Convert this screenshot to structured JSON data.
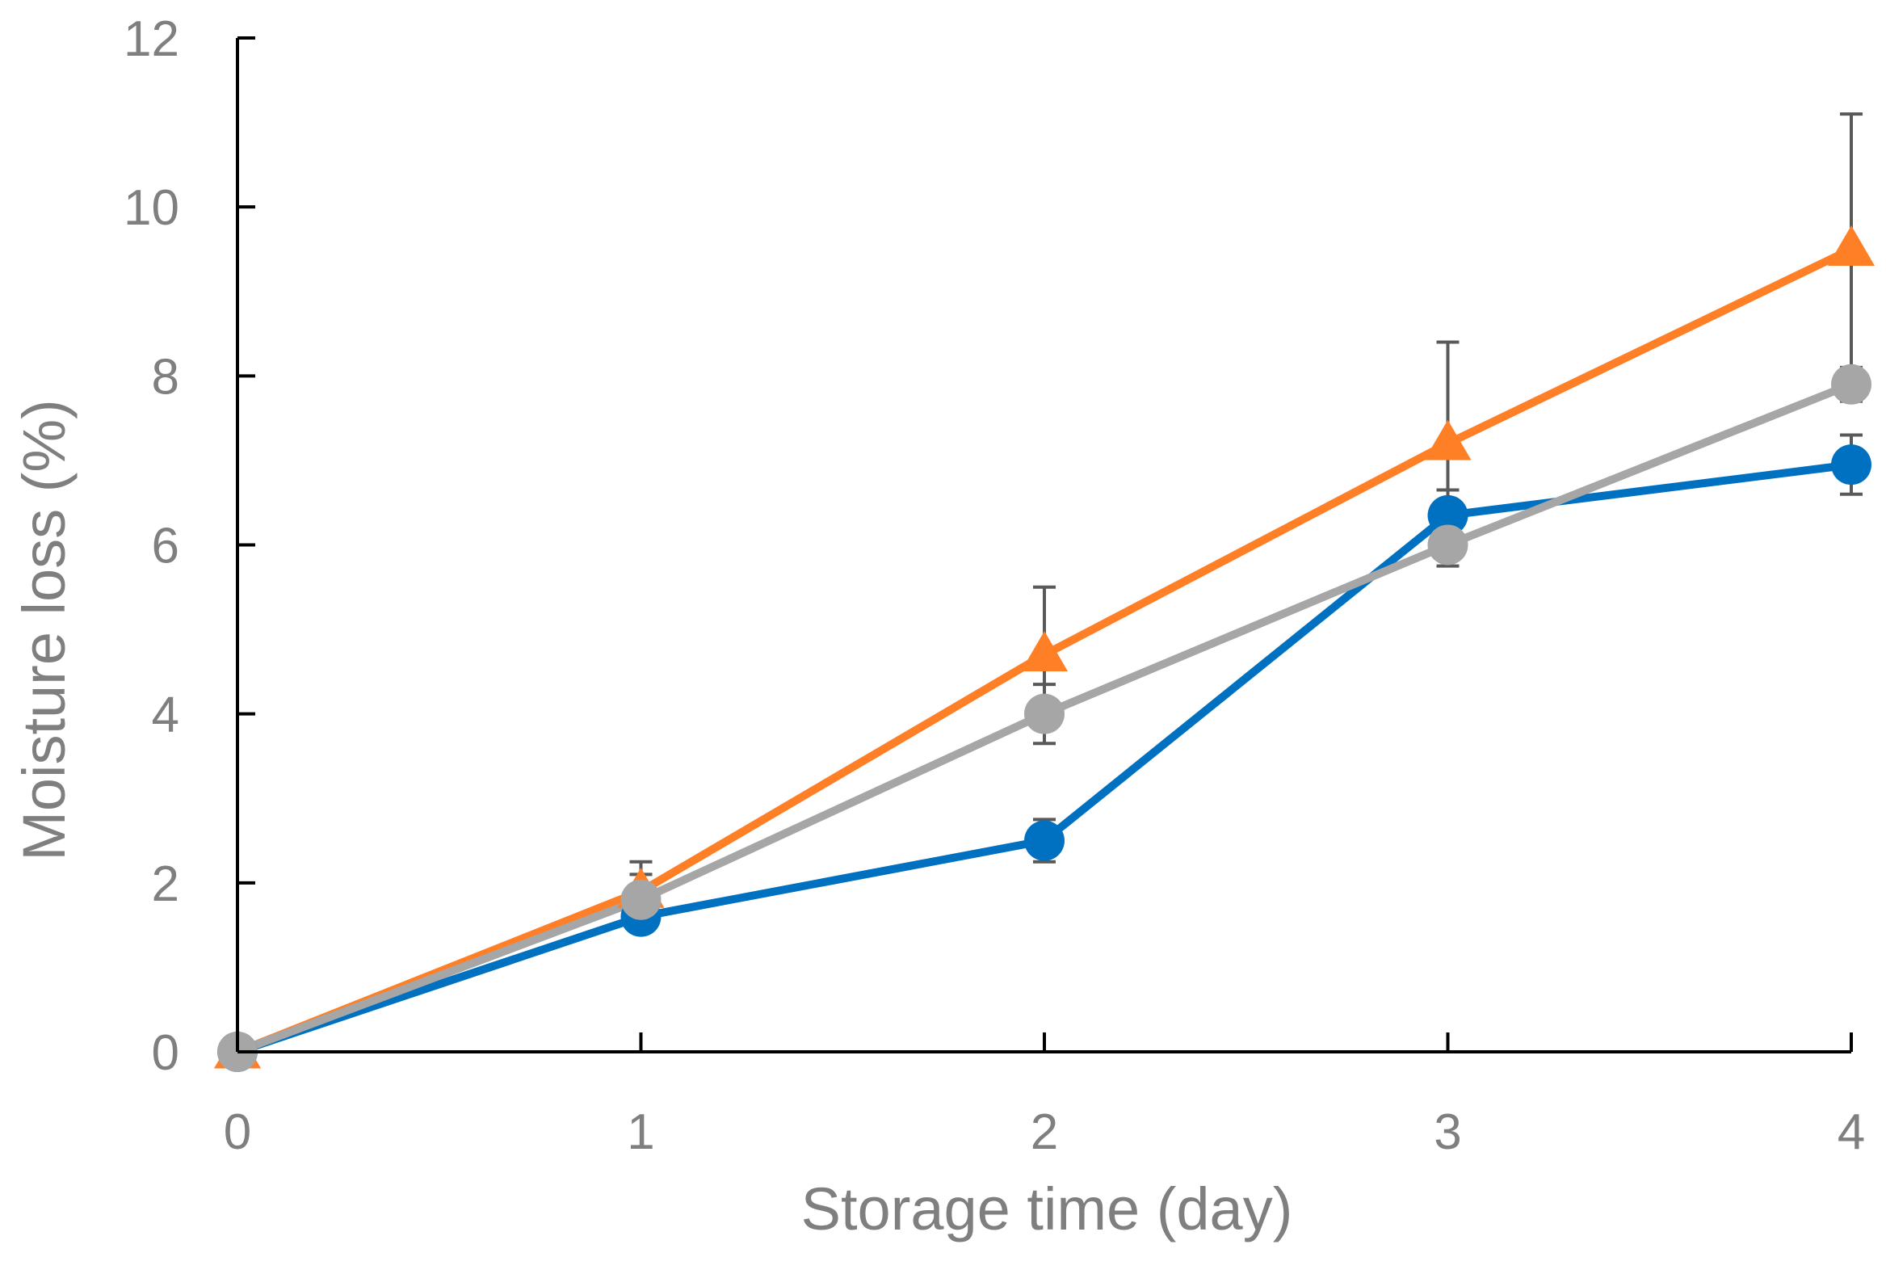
{
  "chart_data": {
    "type": "line",
    "title": "",
    "xlabel": "Storage time (day)",
    "ylabel": "Moisture loss (%)",
    "xlim": [
      0,
      4
    ],
    "ylim": [
      0,
      12
    ],
    "xticks": [
      "0",
      "1",
      "2",
      "3",
      "4"
    ],
    "yticks": [
      "0",
      "2",
      "4",
      "6",
      "8",
      "10",
      "12"
    ],
    "grid": false,
    "legend": "none",
    "x": [
      0,
      1,
      2,
      3,
      4
    ],
    "series": [
      {
        "color": "#0070c0",
        "marker": "circle",
        "values": [
          0,
          1.6,
          2.5,
          6.35,
          6.95
        ],
        "error": [
          0,
          0.1,
          0.25,
          0.3,
          0.35
        ]
      },
      {
        "color": "#ff7f27",
        "marker": "triangle",
        "values": [
          0,
          1.9,
          4.7,
          7.2,
          9.5
        ],
        "error": [
          0,
          0.35,
          0.8,
          1.2,
          1.6
        ]
      },
      {
        "color": "#a6a6a6",
        "marker": "circle",
        "values": [
          0,
          1.8,
          4.0,
          6.0,
          7.9
        ],
        "error": [
          0,
          0.3,
          0.35,
          0.25,
          0.2
        ]
      }
    ]
  }
}
